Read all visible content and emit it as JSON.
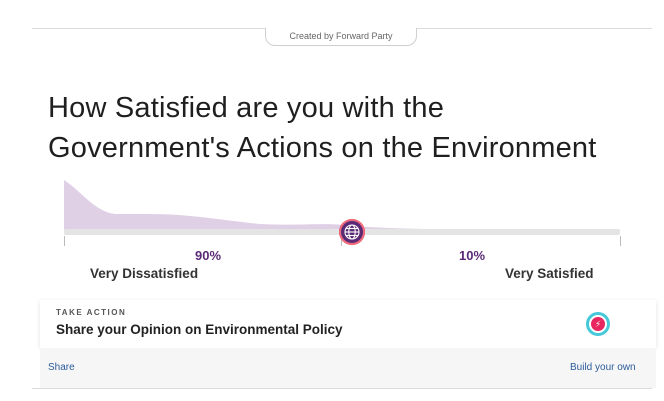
{
  "header": {
    "creator_label": "Created by Forward Party"
  },
  "poll": {
    "title_line1": "How Satisfied are you with the",
    "title_line2": "Government's Actions on the Environment",
    "left_percent": "90%",
    "right_percent": "10%",
    "left_label": "Very Dissatisfied",
    "right_label": "Very Satisfied",
    "slider_value": 0.5
  },
  "card": {
    "kicker": "TAKE ACTION",
    "title": "Share your Opinion on Environmental Policy",
    "icon": "lightning-bolt-icon"
  },
  "footer": {
    "share_label": "Share",
    "build_label": "Build your own"
  },
  "colors": {
    "distribution_fill": "#dccbe3",
    "accent_purple": "#5b2a77",
    "link_blue": "#2d5b9a"
  }
}
